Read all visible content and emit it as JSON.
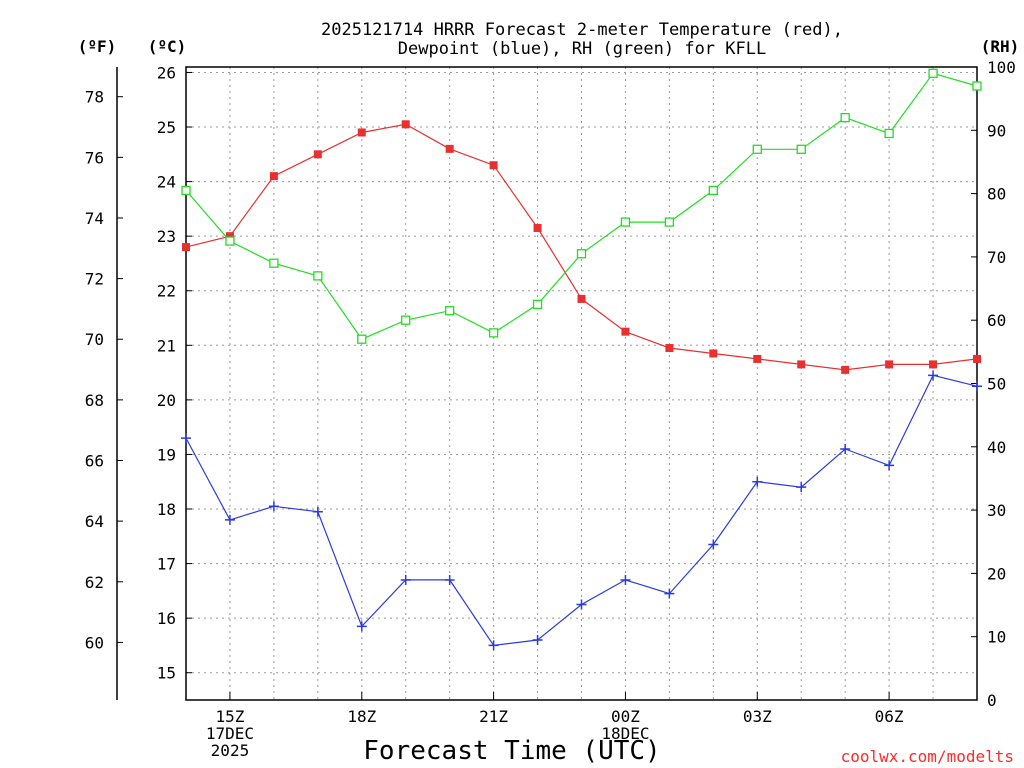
{
  "chart_data": {
    "type": "line",
    "title_lines": [
      "2025121714 HRRR Forecast 2-meter Temperature (red),",
      "Dewpoint (blue), RH (green) for KFLL"
    ],
    "xlabel": "Forecast Time (UTC)",
    "credit": "coolwx.com/modelts",
    "x_hours": [
      14,
      15,
      16,
      17,
      18,
      19,
      20,
      21,
      22,
      23,
      24,
      25,
      26,
      27,
      28,
      29,
      30,
      31,
      32
    ],
    "x_ticks": [
      {
        "hour": 15,
        "lines": [
          "15Z",
          "17DEC",
          "2025"
        ]
      },
      {
        "hour": 18,
        "lines": [
          "18Z"
        ]
      },
      {
        "hour": 21,
        "lines": [
          "21Z"
        ]
      },
      {
        "hour": 24,
        "lines": [
          "00Z",
          "18DEC"
        ]
      },
      {
        "hour": 27,
        "lines": [
          "03Z"
        ]
      },
      {
        "hour": 30,
        "lines": [
          "06Z"
        ]
      }
    ],
    "xlim": [
      14,
      32
    ],
    "celsius_axis": {
      "label": "(ºC)",
      "ticks": [
        15,
        16,
        17,
        18,
        19,
        20,
        21,
        22,
        23,
        24,
        25,
        26
      ],
      "range": [
        14.5,
        26.1
      ]
    },
    "fahrenheit_axis": {
      "label": "(ºF)",
      "ticks": [
        60,
        62,
        64,
        66,
        68,
        70,
        72,
        74,
        76,
        78
      ]
    },
    "rh_axis": {
      "label": "(RH)",
      "ticks": [
        0,
        10,
        20,
        30,
        40,
        50,
        60,
        70,
        80,
        90,
        100
      ],
      "range": [
        0,
        100
      ]
    },
    "series": [
      {
        "name": "Temperature",
        "axis": "celsius",
        "color": "#e83030",
        "marker": "filled-square",
        "values": [
          22.8,
          23.0,
          24.1,
          24.5,
          24.9,
          25.05,
          24.6,
          24.3,
          23.15,
          21.85,
          21.25,
          20.95,
          20.85,
          20.75,
          20.65,
          20.55,
          20.65,
          20.65,
          20.75
        ]
      },
      {
        "name": "Dewpoint",
        "axis": "celsius",
        "color": "#2a3be0",
        "marker": "plus",
        "values": [
          19.3,
          17.8,
          18.05,
          17.95,
          15.85,
          16.7,
          16.7,
          15.5,
          15.6,
          16.25,
          16.7,
          16.45,
          17.35,
          18.5,
          18.4,
          19.1,
          18.8,
          20.45,
          20.25
        ]
      },
      {
        "name": "RH",
        "axis": "rh",
        "color": "#22dd22",
        "marker": "open-square",
        "values": [
          80.5,
          72.5,
          69.0,
          67.0,
          57.0,
          60.0,
          61.5,
          58.0,
          62.5,
          70.5,
          75.5,
          75.5,
          80.5,
          87.0,
          87.0,
          92.0,
          89.5,
          99.0,
          97.0
        ]
      }
    ]
  }
}
